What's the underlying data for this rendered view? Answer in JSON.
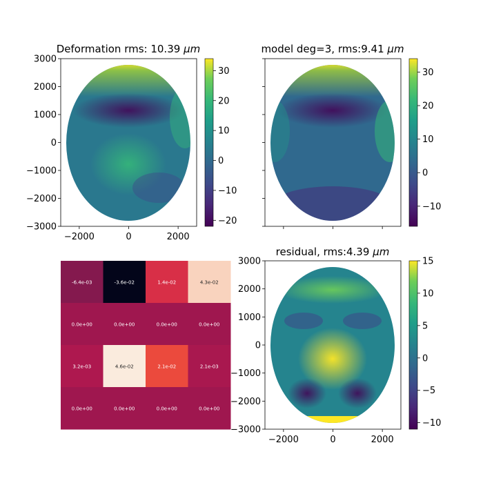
{
  "chart_data": [
    {
      "type": "heatmap",
      "title": "Deformation rms: 10.39",
      "title_unit": "μm",
      "x_ticks": [
        "−2000",
        "0",
        "2000"
      ],
      "y_ticks": [
        "3000",
        "2000",
        "1000",
        "0",
        "−1000",
        "−2000",
        "−3000"
      ],
      "xlim": [
        -2750,
        2750
      ],
      "ylim": [
        -3000,
        3000
      ],
      "colorbar_ticks": [
        "30",
        "20",
        "10",
        "0",
        "−10",
        "−20"
      ],
      "colorbar_range": [
        -22,
        34
      ],
      "colormap": "viridis"
    },
    {
      "type": "heatmap",
      "title": "model deg=3, rms:9.41",
      "title_unit": "μm",
      "xlim": [
        -2750,
        2750
      ],
      "ylim": [
        -3000,
        3000
      ],
      "colorbar_ticks": [
        "30",
        "20",
        "10",
        "0",
        "−10"
      ],
      "colorbar_range": [
        -16,
        34
      ],
      "colormap": "viridis"
    },
    {
      "type": "table",
      "rows": [
        [
          "-6.4e-03",
          "-3.6e-02",
          "1.4e-02",
          "4.3e-02"
        ],
        [
          "0.0e+00",
          "0.0e+00",
          "0.0e+00",
          "0.0e+00"
        ],
        [
          "3.2e-03",
          "4.6e-02",
          "2.1e-02",
          "2.1e-03"
        ],
        [
          "0.0e+00",
          "0.0e+00",
          "0.0e+00",
          "0.0e+00"
        ]
      ],
      "values": [
        [
          -0.0064,
          -0.036,
          0.014,
          0.043
        ],
        [
          0,
          0,
          0,
          0
        ],
        [
          0.0032,
          0.046,
          0.021,
          0.0021
        ],
        [
          0,
          0,
          0,
          0
        ]
      ],
      "colormap": "rocket"
    },
    {
      "type": "heatmap",
      "title": "residual, rms:4.39",
      "title_unit": "μm",
      "x_ticks": [
        "−2000",
        "0",
        "2000"
      ],
      "y_ticks": [
        "3000",
        "2000",
        "1000",
        "0",
        "−1000",
        "−2000",
        "−3000"
      ],
      "xlim": [
        -2750,
        2750
      ],
      "ylim": [
        -3000,
        3000
      ],
      "colorbar_ticks": [
        "15",
        "10",
        "5",
        "0",
        "−5",
        "−10"
      ],
      "colorbar_range": [
        -11,
        15
      ],
      "colormap": "viridis"
    }
  ]
}
